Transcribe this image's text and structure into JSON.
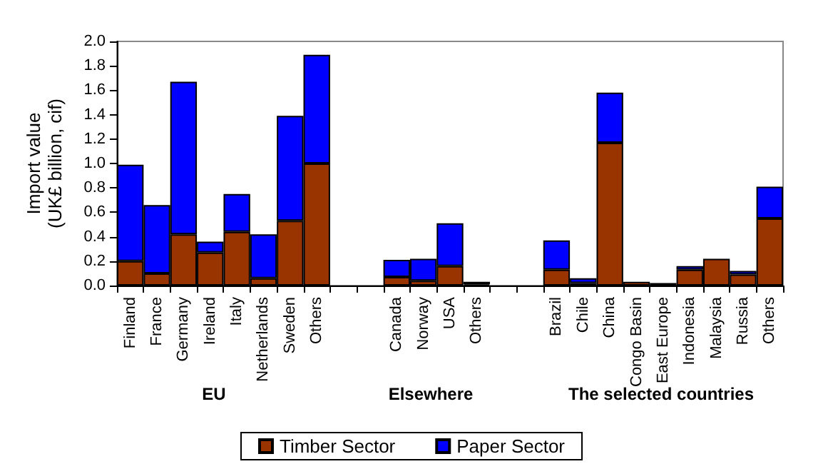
{
  "chart_data": {
    "type": "bar",
    "stacked": true,
    "ylabel": "Import value\n(UK£ billion, cif)",
    "categories": [
      "Finland",
      "France",
      "Germany",
      "Ireland",
      "Italy",
      "Netherlands",
      "Sweden",
      "Others",
      null,
      null,
      "Canada",
      "Norway",
      "USA",
      "Others",
      null,
      null,
      "Brazil",
      "Chile",
      "China",
      "Congo Basin",
      "East Europe",
      "Indonesia",
      "Malaysia",
      "Russia",
      "Others"
    ],
    "series": [
      {
        "name": "Timber Sector",
        "color": "#993300",
        "values": [
          0.2,
          0.1,
          0.42,
          0.27,
          0.44,
          0.06,
          0.53,
          1.0,
          null,
          null,
          0.07,
          0.04,
          0.16,
          0.01,
          null,
          null,
          0.13,
          0.02,
          1.17,
          0.03,
          0.02,
          0.13,
          0.22,
          0.09,
          0.55
        ]
      },
      {
        "name": "Paper Sector",
        "color": "#0000ff",
        "values": [
          0.79,
          0.56,
          1.25,
          0.09,
          0.31,
          0.36,
          0.86,
          0.89,
          null,
          null,
          0.14,
          0.18,
          0.35,
          0.02,
          null,
          null,
          0.24,
          0.04,
          0.41,
          0,
          0,
          0.03,
          0,
          0.03,
          0.26
        ]
      }
    ],
    "annotations": [
      "EU",
      "Elsewhere",
      "The selected countries"
    ],
    "ylim": [
      0,
      2
    ],
    "yticks": [
      {
        "value": 0,
        "label": "0.0"
      },
      {
        "value": 0.2,
        "label": "0.2"
      },
      {
        "value": 0.4,
        "label": "0.4"
      },
      {
        "value": 0.6,
        "label": "0.6"
      },
      {
        "value": 0.8,
        "label": "0.8"
      },
      {
        "value": 1,
        "label": "1.0"
      },
      {
        "value": 1.2,
        "label": "1.2"
      },
      {
        "value": 1.4,
        "label": "1.4"
      },
      {
        "value": 1.6,
        "label": "1.6"
      },
      {
        "value": 1.8,
        "label": "1.8"
      },
      {
        "value": 2,
        "label": "2.0"
      }
    ],
    "grid": false,
    "legend": "bottom"
  }
}
